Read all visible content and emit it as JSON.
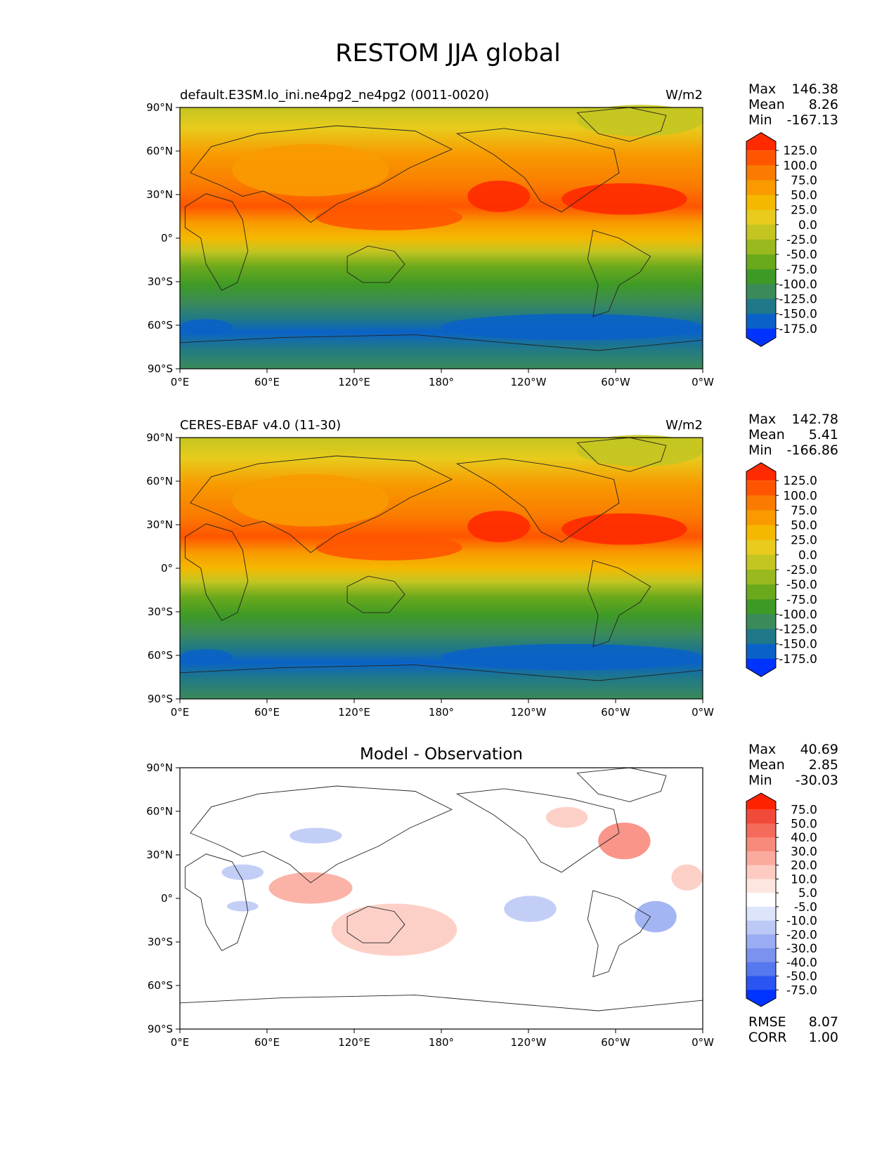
{
  "title": "RESTOM JJA global",
  "lon_ticks": [
    "0°E",
    "60°E",
    "120°E",
    "180°",
    "120°W",
    "60°W",
    "0°W"
  ],
  "lat_ticks": [
    "90°N",
    "60°N",
    "30°N",
    "0°",
    "30°S",
    "60°S",
    "90°S"
  ],
  "panels": [
    {
      "left_title": "default.E3SM.lo_ini.ne4pg2_ne4pg2 (0011-0020)",
      "center_title": "",
      "units": "W/m2",
      "stats": [
        {
          "label": "Max",
          "value": "146.38"
        },
        {
          "label": "Mean",
          "value": "8.26"
        },
        {
          "label": "Min",
          "value": "-167.13"
        }
      ],
      "colorbar_labels": [
        "125.0",
        "100.0",
        "75.0",
        "50.0",
        "25.0",
        "0.0",
        "-25.0",
        "-50.0",
        "-75.0",
        "-100.0",
        "-125.0",
        "-150.0",
        "-175.0"
      ],
      "colorbar_colors": [
        "#ff2a00",
        "#ff5500",
        "#fa7b00",
        "#f89a00",
        "#f5b800",
        "#e8cb1c",
        "#c4c521",
        "#9ab91e",
        "#6ba91c",
        "#3e9a26",
        "#3a8a5a",
        "#1f7888",
        "#0a62c8",
        "#0033ff"
      ]
    },
    {
      "left_title": "CERES-EBAF v4.0 (11-30)",
      "center_title": "",
      "units": "W/m2",
      "stats": [
        {
          "label": "Max",
          "value": "142.78"
        },
        {
          "label": "Mean",
          "value": "5.41"
        },
        {
          "label": "Min",
          "value": "-166.86"
        }
      ],
      "colorbar_labels": [
        "125.0",
        "100.0",
        "75.0",
        "50.0",
        "25.0",
        "0.0",
        "-25.0",
        "-50.0",
        "-75.0",
        "-100.0",
        "-125.0",
        "-150.0",
        "-175.0"
      ],
      "colorbar_colors": [
        "#ff2a00",
        "#ff5500",
        "#fa7b00",
        "#f89a00",
        "#f5b800",
        "#e8cb1c",
        "#c4c521",
        "#9ab91e",
        "#6ba91c",
        "#3e9a26",
        "#3a8a5a",
        "#1f7888",
        "#0a62c8",
        "#0033ff"
      ]
    },
    {
      "left_title": "",
      "center_title": "Model - Observation",
      "units": "",
      "stats": [
        {
          "label": "Max",
          "value": "40.69"
        },
        {
          "label": "Mean",
          "value": "2.85"
        },
        {
          "label": "Min",
          "value": "-30.03"
        }
      ],
      "extra_stats": [
        {
          "label": "RMSE",
          "value": "8.07"
        },
        {
          "label": "CORR",
          "value": "1.00"
        }
      ],
      "colorbar_labels": [
        "75.0",
        "50.0",
        "40.0",
        "30.0",
        "20.0",
        "10.0",
        "5.0",
        "-5.0",
        "-10.0",
        "-20.0",
        "-30.0",
        "-40.0",
        "-50.0",
        "-75.0"
      ],
      "colorbar_colors": [
        "#ff2200",
        "#f24a3a",
        "#f56b5b",
        "#f88a7c",
        "#fbab9e",
        "#fdcbc1",
        "#fee6e0",
        "#ffffff",
        "#dde5fb",
        "#bcc9f6",
        "#9aadf2",
        "#7b93ee",
        "#5578ee",
        "#2a55f2",
        "#0033ff"
      ]
    }
  ]
}
